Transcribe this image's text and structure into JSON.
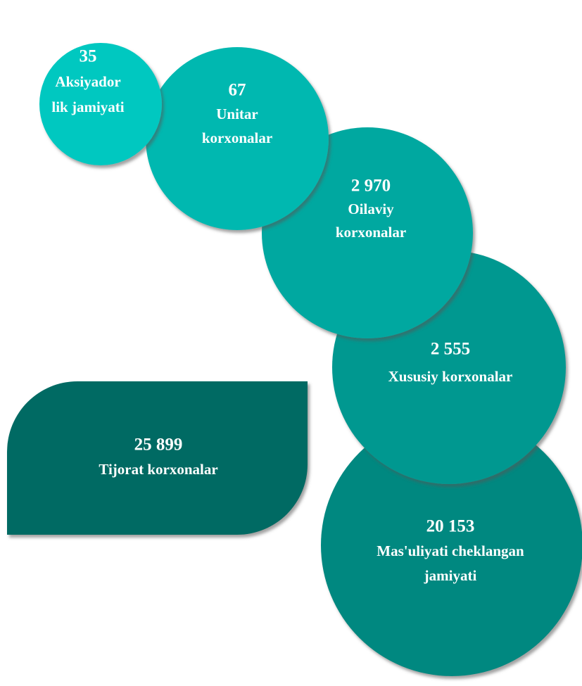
{
  "nodes": [
    {
      "value": "35",
      "label": [
        "Aksiyador",
        "lik jamiyati"
      ]
    },
    {
      "value": "67",
      "label": [
        "Unitar",
        "korxonalar"
      ]
    },
    {
      "value": "2 970",
      "label": [
        "Oilaviy",
        "korxonalar"
      ]
    },
    {
      "value": "2 555",
      "label": [
        "Xususiy korxonalar"
      ]
    },
    {
      "value": "20 153",
      "label": [
        "Mas'uliyati cheklangan",
        "jamiyati"
      ]
    }
  ],
  "highlight": {
    "value": "25 899",
    "label": [
      "Tijorat korxonalar"
    ]
  }
}
